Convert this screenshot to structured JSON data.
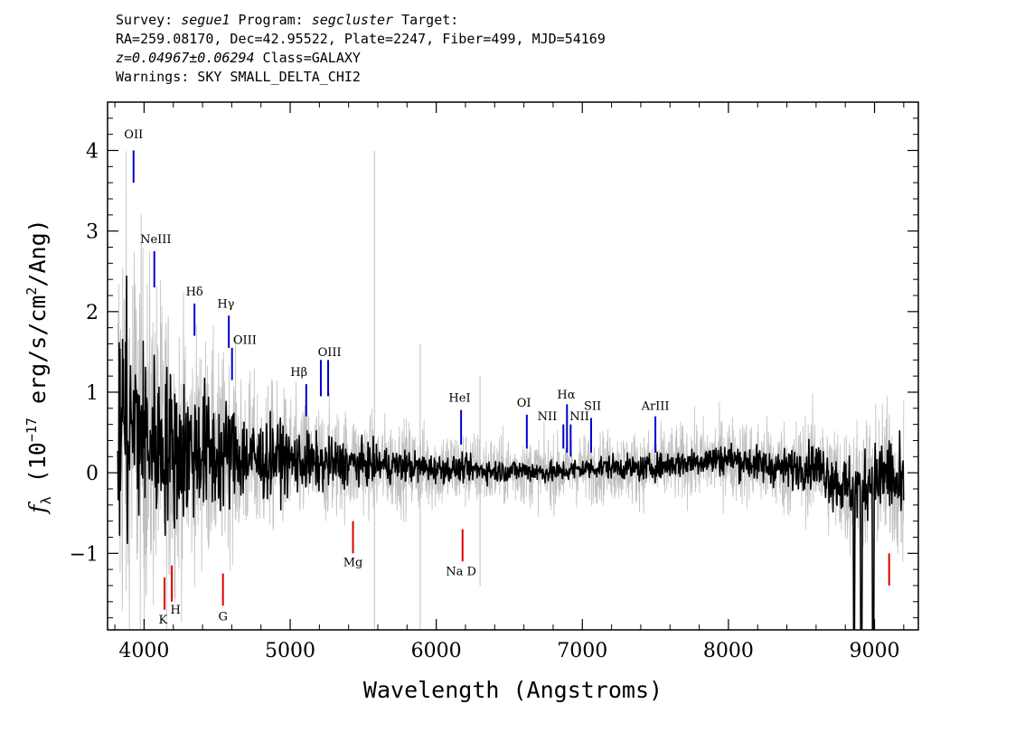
{
  "header": {
    "line1": {
      "p1": "Survey: ",
      "survey": "segue1",
      "p2": " Program: ",
      "program": "segcluster",
      "p3": " Target:"
    },
    "line2": "RA=259.08170, Dec=42.95522, Plate=2247, Fiber=499, MJD=54169",
    "line3": {
      "z": "z=0.04967±0.06294",
      "class": " Class=GALAXY"
    },
    "line4": "Warnings: SKY SMALL_DELTA_CHI2"
  },
  "chart_data": {
    "type": "line",
    "xlabel": "Wavelength (Angstroms)",
    "ylabel_parts": {
      "f": "f",
      "sub": "λ",
      "pre": " (10",
      "exp1": "−17",
      "mid": " erg/s/cm",
      "exp2": "2",
      "post": "/Ang)"
    },
    "xlim": [
      3750,
      9300
    ],
    "ylim": [
      -1.95,
      4.6
    ],
    "x_ticks": [
      4000,
      5000,
      6000,
      7000,
      8000,
      9000
    ],
    "x_tick_labels": [
      "4000",
      "5000",
      "6000",
      "7000",
      "8000",
      "9000"
    ],
    "y_ticks": [
      -1,
      0,
      1,
      2,
      3,
      4
    ],
    "y_tick_labels": [
      "−1",
      "0",
      "1",
      "2",
      "3",
      "4"
    ],
    "grid": false,
    "colors": {
      "flux": "#000000",
      "error": "#c0c0c0",
      "emission": "#0000cc",
      "absorption": "#dd0000"
    },
    "spectrum": [
      [
        3820,
        0.2
      ],
      [
        3850,
        0.8
      ],
      [
        3900,
        0.5
      ],
      [
        3950,
        0.6
      ],
      [
        4000,
        0.45
      ],
      [
        4100,
        0.35
      ],
      [
        4200,
        0.3
      ],
      [
        4300,
        0.25
      ],
      [
        4400,
        0.3
      ],
      [
        4500,
        0.2
      ],
      [
        4600,
        0.25
      ],
      [
        4700,
        0.2
      ],
      [
        4800,
        0.15
      ],
      [
        4900,
        0.2
      ],
      [
        5000,
        0.15
      ],
      [
        5200,
        0.1
      ],
      [
        5400,
        0.12
      ],
      [
        5600,
        0.1
      ],
      [
        5800,
        0.08
      ],
      [
        6000,
        0.05
      ],
      [
        6200,
        0.05
      ],
      [
        6400,
        0.02
      ],
      [
        6600,
        0.03
      ],
      [
        6800,
        0.0
      ],
      [
        7000,
        0.05
      ],
      [
        7200,
        0.08
      ],
      [
        7400,
        0.05
      ],
      [
        7600,
        0.1
      ],
      [
        7800,
        0.15
      ],
      [
        8000,
        0.18
      ],
      [
        8200,
        0.1
      ],
      [
        8400,
        0.05
      ],
      [
        8600,
        0.1
      ],
      [
        8800,
        -0.2
      ],
      [
        9000,
        -0.1
      ],
      [
        9100,
        0.0
      ],
      [
        9200,
        -0.3
      ]
    ],
    "flux_noise": [
      [
        3820,
        1.6
      ],
      [
        4000,
        1.0
      ],
      [
        4300,
        0.8
      ],
      [
        4700,
        0.5
      ],
      [
        5000,
        0.35
      ],
      [
        5500,
        0.22
      ],
      [
        6000,
        0.15
      ],
      [
        6500,
        0.12
      ],
      [
        7000,
        0.12
      ],
      [
        7500,
        0.14
      ],
      [
        8000,
        0.18
      ],
      [
        8500,
        0.22
      ],
      [
        8800,
        0.35
      ],
      [
        9000,
        0.4
      ],
      [
        9200,
        0.5
      ]
    ],
    "error_noise": [
      [
        3820,
        3.2
      ],
      [
        4000,
        2.2
      ],
      [
        4300,
        1.5
      ],
      [
        4700,
        1.0
      ],
      [
        5000,
        0.8
      ],
      [
        5500,
        0.6
      ],
      [
        6000,
        0.5
      ],
      [
        6500,
        0.42
      ],
      [
        7000,
        0.42
      ],
      [
        7500,
        0.45
      ],
      [
        8000,
        0.5
      ],
      [
        8500,
        0.6
      ],
      [
        8800,
        0.75
      ],
      [
        9000,
        0.85
      ],
      [
        9200,
        0.9
      ]
    ],
    "dips": [
      {
        "x": 8860,
        "depth": -2.0
      },
      {
        "x": 8910,
        "depth": -2.0
      },
      {
        "x": 8990,
        "depth": -1.95
      }
    ],
    "error_spikes": [
      {
        "x": 5577,
        "y0": -1.95,
        "y1": 4.0
      },
      {
        "x": 5890,
        "y0": -1.95,
        "y1": 1.6
      },
      {
        "x": 6300,
        "y0": -1.4,
        "y1": 1.2
      }
    ],
    "emission_lines": [
      {
        "label": "OII",
        "x": 3928,
        "y0": 3.6,
        "y1": 4.0,
        "lx": 3928,
        "ly": 4.15
      },
      {
        "label": "NeIII",
        "x": 4070,
        "y0": 2.3,
        "y1": 2.75,
        "lx": 4080,
        "ly": 2.85
      },
      {
        "label": "Hδ",
        "x": 4345,
        "y0": 1.7,
        "y1": 2.1,
        "lx": 4345,
        "ly": 2.2
      },
      {
        "label": "Hγ",
        "x": 4580,
        "y0": 1.55,
        "y1": 1.95,
        "lx": 4560,
        "ly": 2.05
      },
      {
        "label": "OIII",
        "x": 4602,
        "y0": 1.15,
        "y1": 1.55,
        "lx": 4690,
        "ly": 1.6
      },
      {
        "label": "Hβ",
        "x": 5110,
        "y0": 0.7,
        "y1": 1.1,
        "lx": 5060,
        "ly": 1.2
      },
      {
        "label": "OIII",
        "x": 5210,
        "y0": 0.95,
        "y1": 1.4,
        "lx": 5270,
        "ly": 1.45
      },
      {
        "label": "",
        "x": 5260,
        "y0": 0.95,
        "y1": 1.4,
        "lx": 0,
        "ly": 0
      },
      {
        "label": "HeI",
        "x": 6170,
        "y0": 0.35,
        "y1": 0.78,
        "lx": 6160,
        "ly": 0.88
      },
      {
        "label": "OI",
        "x": 6620,
        "y0": 0.3,
        "y1": 0.72,
        "lx": 6600,
        "ly": 0.82
      },
      {
        "label": "NII",
        "x": 6870,
        "y0": 0.3,
        "y1": 0.6,
        "lx": 6760,
        "ly": 0.65
      },
      {
        "label": "Hα",
        "x": 6895,
        "y0": 0.25,
        "y1": 0.85,
        "lx": 6890,
        "ly": 0.92
      },
      {
        "label": "NII",
        "x": 6920,
        "y0": 0.2,
        "y1": 0.6,
        "lx": 6980,
        "ly": 0.65
      },
      {
        "label": "SII",
        "x": 7060,
        "y0": 0.25,
        "y1": 0.68,
        "lx": 7070,
        "ly": 0.78
      },
      {
        "label": "ArIII",
        "x": 7500,
        "y0": 0.25,
        "y1": 0.7,
        "lx": 7500,
        "ly": 0.78
      }
    ],
    "absorption_lines": [
      {
        "label": "K",
        "x": 4140,
        "y0": -1.7,
        "y1": -1.3,
        "lx": 4130,
        "ly": -1.87
      },
      {
        "label": "H",
        "x": 4190,
        "y0": -1.6,
        "y1": -1.15,
        "lx": 4215,
        "ly": -1.75
      },
      {
        "label": "G",
        "x": 4540,
        "y0": -1.65,
        "y1": -1.25,
        "lx": 4540,
        "ly": -1.83
      },
      {
        "label": "Mg",
        "x": 5430,
        "y0": -1.0,
        "y1": -0.6,
        "lx": 5430,
        "ly": -1.16
      },
      {
        "label": "Na D",
        "x": 6180,
        "y0": -1.1,
        "y1": -0.7,
        "lx": 6170,
        "ly": -1.27
      },
      {
        "label": "",
        "x": 9100,
        "y0": -1.4,
        "y1": -1.0,
        "lx": 0,
        "ly": 0
      }
    ]
  }
}
